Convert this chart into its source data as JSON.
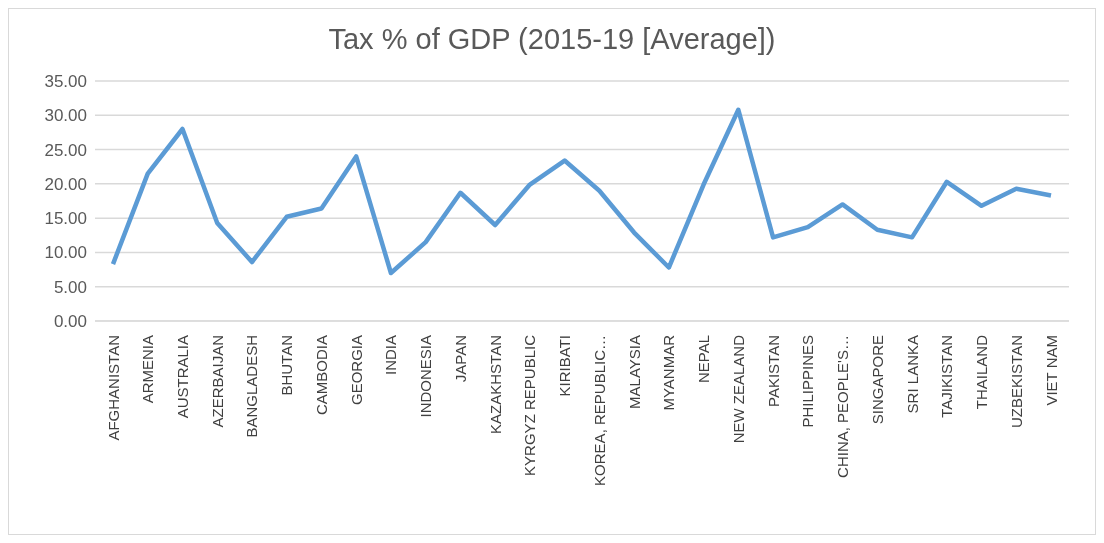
{
  "chart_data": {
    "type": "line",
    "title": "Tax % of GDP (2015-19 [Average])",
    "categories": [
      "AFGHANISTAN",
      "ARMENIA",
      "AUSTRALIA",
      "AZERBAIJAN",
      "BANGLADESH",
      "BHUTAN",
      "CAMBODIA",
      "GEORGIA",
      "INDIA",
      "INDONESIA",
      "JAPAN",
      "KAZAKHSTAN",
      "KYRGYZ REPUBLIC",
      "KIRIBATI",
      "KOREA, REPUBLIC…",
      "MALAYSIA",
      "MYANMAR",
      "NEPAL",
      "NEW ZEALAND",
      "PAKISTAN",
      "PHILIPPINES",
      "CHINA, PEOPLE'S…",
      "SINGAPORE",
      "SRI LANKA",
      "TAJIKISTAN",
      "THAILAND",
      "UZBEKISTAN",
      "VIET NAM"
    ],
    "series": [
      {
        "color": "#5b9bd5",
        "values": [
          8.3,
          21.5,
          28.0,
          14.3,
          8.6,
          15.2,
          16.4,
          24.0,
          7.0,
          11.5,
          18.7,
          14.0,
          19.9,
          23.4,
          19.0,
          12.9,
          7.8,
          19.9,
          30.8,
          12.2,
          13.7,
          17.0,
          13.3,
          12.2,
          20.3,
          16.8,
          19.3,
          18.3
        ]
      }
    ],
    "ylim": [
      0,
      35
    ],
    "yticks": [
      {
        "value": 0,
        "label": "0.00"
      },
      {
        "value": 5,
        "label": "5.00"
      },
      {
        "value": 10,
        "label": "10.00"
      },
      {
        "value": 15,
        "label": "15.00"
      },
      {
        "value": 20,
        "label": "20.00"
      },
      {
        "value": 25,
        "label": "25.00"
      },
      {
        "value": 30,
        "label": "30.00"
      },
      {
        "value": 35,
        "label": "35.00"
      }
    ],
    "grid": "y",
    "legend": false,
    "marker": "none",
    "line_style": "solid"
  }
}
